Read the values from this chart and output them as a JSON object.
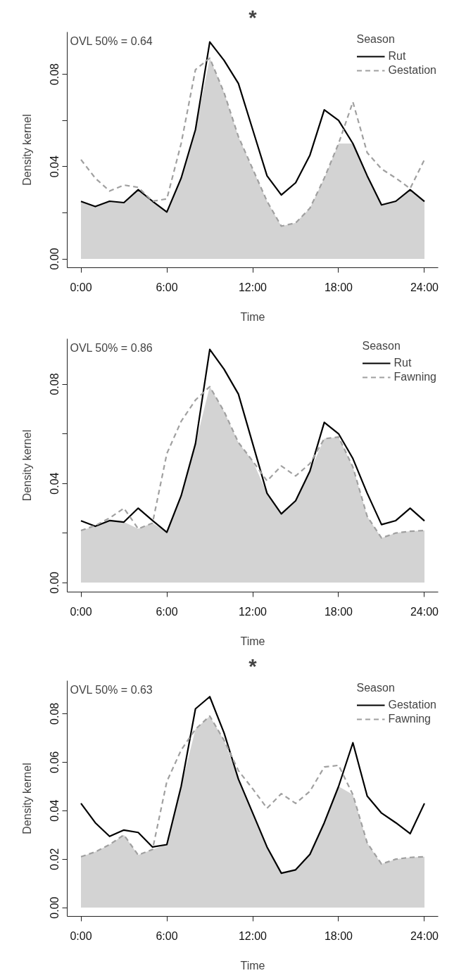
{
  "chart_data": [
    {
      "type": "line",
      "title": "*",
      "xlabel": "Time",
      "ylabel": "Density kernel",
      "legend_title": "Season",
      "legend": "top right",
      "grid": false,
      "annotations": [
        "OVL 50% = 0.64"
      ],
      "x": [
        0,
        1,
        2,
        3,
        4,
        5,
        6,
        7,
        8,
        9,
        10,
        11,
        12,
        13,
        14,
        15,
        16,
        17,
        18,
        19,
        20,
        21,
        22,
        23,
        24
      ],
      "xlim": [
        -0.96,
        24.96
      ],
      "ylim": [
        -0.0038,
        0.0983
      ],
      "xticks": [
        {
          "value": 0,
          "label": "0:00"
        },
        {
          "value": 6,
          "label": "6:00"
        },
        {
          "value": 12,
          "label": "12:00"
        },
        {
          "value": 18,
          "label": "18:00"
        },
        {
          "value": 24,
          "label": "24:00"
        }
      ],
      "yticks": [
        {
          "value": 0,
          "label": "0.00"
        },
        {
          "value": 0.02,
          "label": null
        },
        {
          "value": 0.04,
          "label": "0.04"
        },
        {
          "value": 0.06,
          "label": null
        },
        {
          "value": 0.08,
          "label": "0.08"
        }
      ],
      "series": [
        {
          "type": "area",
          "color": "#d3d3d3",
          "values": [
            0.0249,
            0.0227,
            0.025,
            0.0244,
            0.03,
            0.025,
            0.0203,
            0.035,
            0.056,
            0.087,
            0.072,
            0.053,
            0.039,
            0.025,
            0.0142,
            0.0156,
            0.022,
            0.035,
            0.05,
            0.05,
            0.036,
            0.0234,
            0.025,
            0.03,
            0.0249
          ]
        },
        {
          "name": "Rut",
          "color": "#000000",
          "line_style": "solid",
          "values": [
            0.0249,
            0.0227,
            0.025,
            0.0244,
            0.03,
            0.025,
            0.0203,
            0.035,
            0.056,
            0.094,
            0.086,
            0.076,
            0.056,
            0.036,
            0.0277,
            0.033,
            0.045,
            0.0646,
            0.06,
            0.05,
            0.036,
            0.0234,
            0.025,
            0.03,
            0.0249
          ]
        },
        {
          "name": "Gestation",
          "color": "#a0a0a0",
          "line_style": "dashed",
          "values": [
            0.043,
            0.035,
            0.0294,
            0.032,
            0.031,
            0.025,
            0.026,
            0.05,
            0.082,
            0.087,
            0.072,
            0.053,
            0.039,
            0.025,
            0.0142,
            0.0156,
            0.022,
            0.035,
            0.05,
            0.068,
            0.046,
            0.039,
            0.035,
            0.0305,
            0.043
          ]
        }
      ]
    },
    {
      "type": "line",
      "xlabel": "Time",
      "ylabel": "Density kernel",
      "legend_title": "Season",
      "legend": "top right",
      "grid": false,
      "annotations": [
        "OVL 50% = 0.86"
      ],
      "x": [
        0,
        1,
        2,
        3,
        4,
        5,
        6,
        7,
        8,
        9,
        10,
        11,
        12,
        13,
        14,
        15,
        16,
        17,
        18,
        19,
        20,
        21,
        22,
        23,
        24
      ],
      "xlim": [
        -0.96,
        24.96
      ],
      "ylim": [
        -0.0038,
        0.0983
      ],
      "xticks": [
        {
          "value": 0,
          "label": "0:00"
        },
        {
          "value": 6,
          "label": "6:00"
        },
        {
          "value": 12,
          "label": "12:00"
        },
        {
          "value": 18,
          "label": "18:00"
        },
        {
          "value": 24,
          "label": "24:00"
        }
      ],
      "yticks": [
        {
          "value": 0,
          "label": "0.00"
        },
        {
          "value": 0.02,
          "label": null
        },
        {
          "value": 0.04,
          "label": "0.04"
        },
        {
          "value": 0.06,
          "label": null
        },
        {
          "value": 0.08,
          "label": "0.08"
        }
      ],
      "series": [
        {
          "type": "area",
          "color": "#d3d3d3",
          "values": [
            0.021,
            0.0227,
            0.025,
            0.0244,
            0.0217,
            0.024,
            0.0203,
            0.035,
            0.056,
            0.079,
            0.069,
            0.0565,
            0.049,
            0.036,
            0.0277,
            0.033,
            0.045,
            0.058,
            0.0587,
            0.0466,
            0.0267,
            0.018,
            0.02,
            0.0207,
            0.021
          ]
        },
        {
          "name": "Rut",
          "color": "#000000",
          "line_style": "solid",
          "values": [
            0.0249,
            0.0227,
            0.025,
            0.0244,
            0.03,
            0.025,
            0.0203,
            0.035,
            0.056,
            0.094,
            0.086,
            0.076,
            0.056,
            0.036,
            0.0277,
            0.033,
            0.045,
            0.0646,
            0.06,
            0.05,
            0.036,
            0.0234,
            0.025,
            0.03,
            0.0249
          ]
        },
        {
          "name": "Fawning",
          "color": "#a0a0a0",
          "line_style": "dashed",
          "values": [
            0.021,
            0.023,
            0.026,
            0.03,
            0.0217,
            0.024,
            0.052,
            0.065,
            0.0736,
            0.079,
            0.069,
            0.0565,
            0.049,
            0.041,
            0.047,
            0.043,
            0.048,
            0.058,
            0.0587,
            0.0466,
            0.0267,
            0.018,
            0.02,
            0.0207,
            0.021
          ]
        }
      ]
    },
    {
      "type": "line",
      "title": "*",
      "xlabel": "Time",
      "ylabel": "Density kernel",
      "legend_title": "Season",
      "legend": "top right",
      "grid": false,
      "annotations": [
        "OVL 50% = 0.63"
      ],
      "x": [
        0,
        1,
        2,
        3,
        4,
        5,
        6,
        7,
        8,
        9,
        10,
        11,
        12,
        13,
        14,
        15,
        16,
        17,
        18,
        19,
        20,
        21,
        22,
        23,
        24
      ],
      "xlim": [
        -0.96,
        24.96
      ],
      "ylim": [
        -0.0036,
        0.0936
      ],
      "xticks": [
        {
          "value": 0,
          "label": "0:00"
        },
        {
          "value": 6,
          "label": "6:00"
        },
        {
          "value": 12,
          "label": "12:00"
        },
        {
          "value": 18,
          "label": "18:00"
        },
        {
          "value": 24,
          "label": "24:00"
        }
      ],
      "yticks": [
        {
          "value": 0,
          "label": "0.00"
        },
        {
          "value": 0.02,
          "label": "0.02"
        },
        {
          "value": 0.04,
          "label": "0.04"
        },
        {
          "value": 0.06,
          "label": "0.06"
        },
        {
          "value": 0.08,
          "label": "0.08"
        }
      ],
      "series": [
        {
          "type": "area",
          "color": "#d3d3d3",
          "values": [
            0.021,
            0.023,
            0.026,
            0.03,
            0.0217,
            0.024,
            0.026,
            0.05,
            0.0736,
            0.079,
            0.069,
            0.053,
            0.039,
            0.025,
            0.0142,
            0.0156,
            0.022,
            0.035,
            0.05,
            0.0466,
            0.0267,
            0.018,
            0.02,
            0.0207,
            0.021
          ]
        },
        {
          "name": "Gestation",
          "color": "#000000",
          "line_style": "solid",
          "values": [
            0.043,
            0.035,
            0.0294,
            0.032,
            0.031,
            0.025,
            0.026,
            0.05,
            0.082,
            0.087,
            0.072,
            0.053,
            0.039,
            0.025,
            0.0142,
            0.0156,
            0.022,
            0.035,
            0.05,
            0.068,
            0.046,
            0.039,
            0.035,
            0.0305,
            0.043
          ]
        },
        {
          "name": "Fawning",
          "color": "#a0a0a0",
          "line_style": "dashed",
          "values": [
            0.021,
            0.023,
            0.026,
            0.03,
            0.0217,
            0.024,
            0.052,
            0.065,
            0.0736,
            0.079,
            0.069,
            0.0565,
            0.049,
            0.041,
            0.047,
            0.043,
            0.048,
            0.058,
            0.0587,
            0.0466,
            0.0267,
            0.018,
            0.02,
            0.0207,
            0.021
          ]
        }
      ]
    }
  ]
}
